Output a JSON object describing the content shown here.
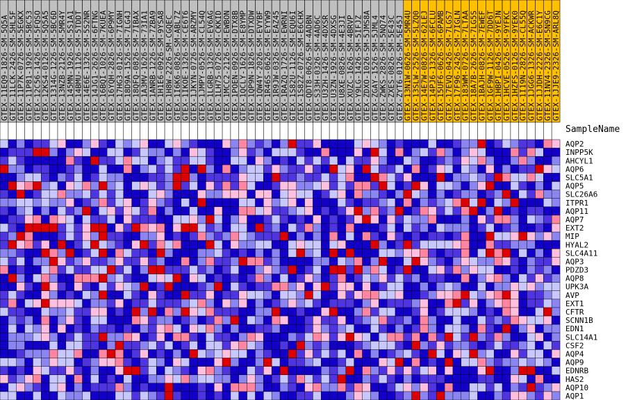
{
  "chart_data": {
    "type": "heatmap",
    "column_header": "SampleName",
    "samples": [
      "GTEX-11EQ9-1826-SM-5Q5A",
      "GTEX-11LCK-2426-SM-5HL5F",
      "GTEX-11P7K-0726-SM-5EGKX",
      "GTEX-11P81-1926-SM-5BC53",
      "GTEX-12C56-1426-SM-5FQSO",
      "GTEX-12KS4-0126-SM-5Q5A5",
      "GTEX-1314G-1226-SM-5BC6D",
      "GTEX-13NZB-2126-SM-5MR4Y",
      "GTEX-145MN-1926-SM-5S1A1",
      "GTEX-14BMU-1126-SM-5TDDT",
      "GTEX-14E6E-1326-SM-5S2NR",
      "GTEX-14JG1-2626-SM-6FTNG",
      "GTEX-16BQI-1026-SM-7KUEA",
      "GTEX-16YQH-2826-SM-6P9MY",
      "GTEX-17HG3-0126-SM-7IGNH",
      "GTEX-18D9A-1526-SM-7LG4J",
      "GTEX-18QFQ-0826-SM-7IBAX",
      "GTEX-1A3MV-1626-SM-73IA1",
      "GTEX-1ANRB-1226-SM-7ZBA9",
      "GTEX-1H1E6-0926-SM-9YSA8",
      "GTEX-1H8W-2226-SM-CGQEC",
      "GTEX-1I6K6-0826-SM-ABL7Z",
      "GTEX-1IKOE-1326-SM-CE6T6",
      "GTEX-1JKYN-0726-SM-ARZMY",
      "GTEX-1JMPY-0526-SM-CL54Q",
      "GTEX-1LGRB-1326-SM-EV6AG",
      "GTEX-1LH75-0726-SM-CKKID",
      "GTEX-1MCC2-2126-SM-EWBON",
      "GTEX-1POEN-0926-SM-DTX8B",
      "GTEX-1QCLY-1626-SM-E8YMP",
      "GTEX-1QP9N-1826-SM-DTXDW",
      "GTEX-1QW4Y-2026-SM-EVYBF",
      "GTEX-1R46S-0626-SM-EYYW9",
      "GTEX-1R9JW-0326-SM-EAZ45",
      "GTEX-1RAZQ-1726-SM-EWRNI",
      "GTEX-1S82U-1126-SM-EQU6I",
      "GTEX-1S82Z-0726-SM-E6CHX",
      "GTEX-QDT8-0626-SM-4ADBN",
      "GTEX-S33H-0326-SM-4AD6C",
      "GTEX-U3ZH-1426-SM-4DXSR",
      "GTEX-U3ZN-1926-SM-4DXSG",
      "GTEX-U8XE-0826-SM-4E3JI",
      "GTEX-XUZC-1626-SM-4BRVP",
      "GTEX-Y9LG-1426-SM-5IFJZ",
      "GTEX-ZDXO-1026-SM-5JMS8A",
      "GTEX-ZGAY-1526-SM-5JML4",
      "GTEX-ZWKS-2826-SM-5NQ74",
      "GTEX-ZXES-0826-SM-5E43C",
      "GTEX-ZYT6-0126-SM-5E45J",
      "GTEX-13N1W-0626-SM-5MR4U",
      "GTEX-13SLW-2526-SM-5LZQ0",
      "GTEX-14E7W-0826-SM-62LEJ",
      "GTEX-14PJ6-1326-SM-6FCLU",
      "GTEX-15UF6-0626-SM-6PAMB",
      "GTEX-17EVQ-0426-SM-7LGS7",
      "GTEX-17F96-2426-SM-7IGLN",
      "GTEX-183WM-0726-SM-7LTAA",
      "GTEX-18A7B-2626-SM-7LG5S",
      "GTEX-1BAJH-0826-SM-7EWEF",
      "GTEX-1GF9W-1126-SM-7DD6T",
      "GTEX-1HBPI-0426-SM-9YEJN",
      "GTEX-1HCVE-0526-SM-9YFKC",
      "GTEX-1HZFS-0126-SM-9YEK0",
      "GTEX-1I19N-2826-SM-CL55Q",
      "GTEX-1JGG6-1326-SM-ACKWR",
      "GTEX-1JJDH-2226-SM-E6C1Y",
      "GTEX-11NV4-2326-SM-5N9CG",
      "GTEX-1JJE9-2326-SM-ARL8Q"
    ],
    "sample_groups": [
      0,
      0,
      0,
      0,
      0,
      0,
      0,
      0,
      0,
      0,
      0,
      0,
      0,
      0,
      0,
      0,
      0,
      0,
      0,
      0,
      0,
      0,
      0,
      0,
      0,
      0,
      0,
      0,
      0,
      0,
      0,
      0,
      0,
      0,
      0,
      0,
      0,
      0,
      0,
      0,
      0,
      0,
      0,
      0,
      0,
      0,
      0,
      0,
      0,
      1,
      1,
      1,
      1,
      1,
      1,
      1,
      1,
      1,
      1,
      1,
      1,
      1,
      1,
      1,
      1,
      1,
      1,
      1
    ],
    "genes": [
      "AQP2",
      "INPP5K",
      "AHCYL1",
      "AQP6",
      "SLC5A1",
      "AQP5",
      "SLC26A6",
      "ITPR1",
      "AQP11",
      "AQP7",
      "EXT2",
      "MIP",
      "HYAL2",
      "SLC4A11",
      "AQP3",
      "PDZD3",
      "AQP8",
      "UPK3A",
      "AVP",
      "EXT1",
      "CFTR",
      "SCNN1B",
      "EDN1",
      "SLC14A1",
      "CSF2",
      "AQP4",
      "AQP9",
      "EDNRB",
      "HAS2",
      "AQP10",
      "AQP1"
    ],
    "value_scale": "0 = deep blue (low), 6 = red (high)",
    "palette": [
      "#1200c8",
      "#4e35e0",
      "#8a85f0",
      "#c8c8ff",
      "#ffc0e0",
      "#ff85a0",
      "#dc0000"
    ],
    "group_colors": [
      "#c0c0c0",
      "#ffc000"
    ],
    "grid_color": "#000000"
  }
}
